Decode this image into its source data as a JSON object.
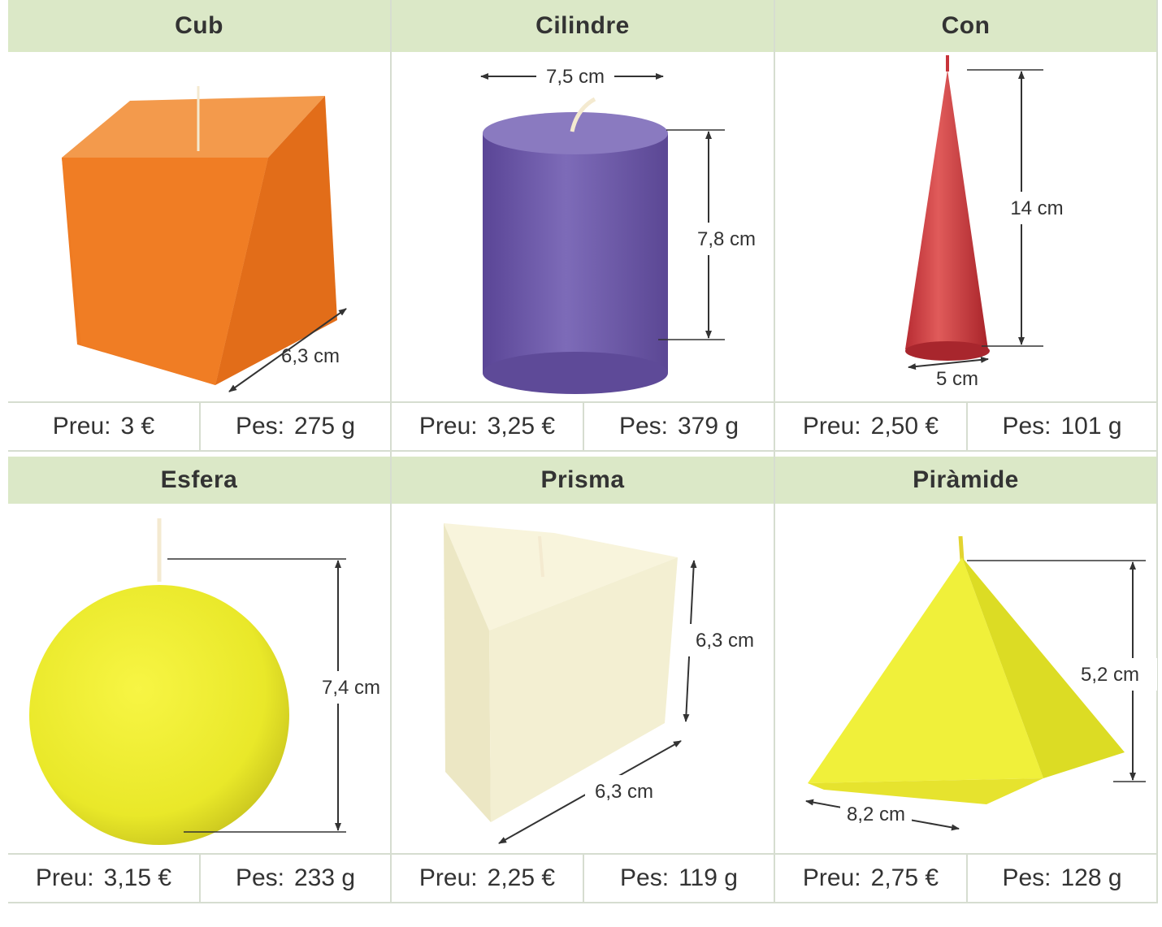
{
  "shapes": [
    {
      "name": "Cub",
      "price_label": "Preu:",
      "price": "3 €",
      "weight_label": "Pes:",
      "weight": "275 g",
      "dims": [
        "6,3 cm"
      ],
      "color": "#f07a22"
    },
    {
      "name": "Cilindre",
      "price_label": "Preu:",
      "price": "3,25 €",
      "weight_label": "Pes:",
      "weight": "379 g",
      "dims": [
        "7,5 cm",
        "7,8 cm"
      ],
      "color": "#6b56a8"
    },
    {
      "name": "Con",
      "price_label": "Preu:",
      "price": "2,50 €",
      "weight_label": "Pes:",
      "weight": "101 g",
      "dims": [
        "14 cm",
        "5 cm"
      ],
      "color": "#cc3a3e"
    },
    {
      "name": "Esfera",
      "price_label": "Preu:",
      "price": "3,15 €",
      "weight_label": "Pes:",
      "weight": "233 g",
      "dims": [
        "7,4 cm"
      ],
      "color": "#ecec2c"
    },
    {
      "name": "Prisma",
      "price_label": "Preu:",
      "price": "2,25 €",
      "weight_label": "Pes:",
      "weight": "119 g",
      "dims": [
        "6,3 cm",
        "6,3 cm"
      ],
      "color": "#f4f0cf"
    },
    {
      "name": "Piràmide",
      "price_label": "Preu:",
      "price": "2,75 €",
      "weight_label": "Pes:",
      "weight": "128 g",
      "dims": [
        "5,2 cm",
        "8,2 cm"
      ],
      "color": "#eef03a"
    }
  ]
}
